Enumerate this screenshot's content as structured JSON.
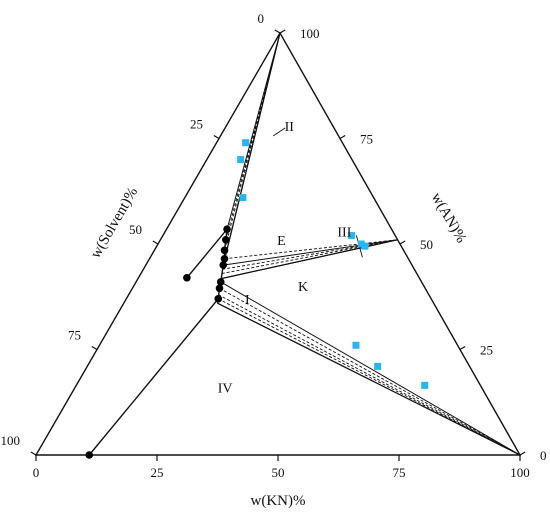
{
  "chart_data": {
    "type": "ternary-phase-diagram",
    "axes": {
      "bottom": {
        "label": "w(KN)%",
        "ticks": [
          "0",
          "25",
          "50",
          "75",
          "100"
        ]
      },
      "right": {
        "label": "w(AN)%",
        "ticks": [
          "0",
          "25",
          "50",
          "75",
          "100"
        ]
      },
      "left": {
        "label": "w(Solvent)%",
        "ticks": [
          "0",
          "25",
          "50",
          "75",
          "100"
        ]
      }
    },
    "region_labels": [
      {
        "id": "I",
        "text": "I",
        "kn": 25,
        "an": 37
      },
      {
        "id": "II",
        "text": "II",
        "kn": 13,
        "an": 78
      },
      {
        "id": "III",
        "text": "III",
        "kn": 37,
        "an": 53
      },
      {
        "id": "IV",
        "text": "IV",
        "kn": 31,
        "an": 16
      },
      {
        "id": "K",
        "text": "K",
        "kn": 35,
        "an": 40
      },
      {
        "id": "E",
        "text": "E",
        "kn": 25,
        "an": 51
      }
    ],
    "solubility_curve": [
      {
        "kn": 10,
        "an": 42
      },
      {
        "kn": 12.5,
        "an": 53.5
      },
      {
        "kn": 13.5,
        "an": 51
      },
      {
        "kn": 14.5,
        "an": 48.5
      },
      {
        "kn": 15.5,
        "an": 46.5
      },
      {
        "kn": 16,
        "an": 45
      },
      {
        "kn": 17.5,
        "an": 41
      },
      {
        "kn": 18,
        "an": 39.5
      },
      {
        "kn": 19,
        "an": 37
      },
      {
        "kn": 11,
        "an": 0
      }
    ],
    "invariant_point": {
      "kn": 16,
      "an": 45
    },
    "solid_phases": {
      "AN": {
        "kn": 0,
        "an": 100
      },
      "KN": {
        "kn": 100,
        "an": 0
      },
      "AN-KN": {
        "kn": 49,
        "an": 51
      }
    },
    "tie_lines": [
      {
        "from": {
          "kn": 12.5,
          "an": 53.5
        },
        "to": "AN",
        "style": "solid"
      },
      {
        "from": {
          "kn": 13.5,
          "an": 51
        },
        "to": "AN",
        "style": "dashed"
      },
      {
        "from": {
          "kn": 14.5,
          "an": 48.5
        },
        "to": "AN",
        "style": "dashed"
      },
      {
        "from": {
          "kn": 15.5,
          "an": 46.5
        },
        "to": "AN",
        "style": "dashed"
      },
      {
        "from": {
          "kn": 16,
          "an": 45
        },
        "to": "AN",
        "style": "solid"
      },
      {
        "from": {
          "kn": 16,
          "an": 45
        },
        "to": "AN-KN",
        "style": "solid"
      },
      {
        "from": {
          "kn": 15.5,
          "an": 46.5
        },
        "to": "AN-KN",
        "style": "dashed"
      },
      {
        "from": {
          "kn": 16.3,
          "an": 44
        },
        "to": "AN-KN",
        "style": "dashed"
      },
      {
        "from": {
          "kn": 16.7,
          "an": 43
        },
        "to": "AN-KN",
        "style": "dashed"
      },
      {
        "from": {
          "kn": 17.2,
          "an": 41.8
        },
        "to": "AN-KN",
        "style": "solid"
      },
      {
        "from": {
          "kn": 17.5,
          "an": 41
        },
        "to": "KN",
        "style": "solid"
      },
      {
        "from": {
          "kn": 18,
          "an": 39.5
        },
        "to": "KN",
        "style": "dashed"
      },
      {
        "from": {
          "kn": 18.5,
          "an": 38
        },
        "to": "KN",
        "style": "dashed"
      },
      {
        "from": {
          "kn": 19,
          "an": 37
        },
        "to": "KN",
        "style": "dashed"
      },
      {
        "from": {
          "kn": 19.3,
          "an": 36
        },
        "to": "KN",
        "style": "solid"
      }
    ],
    "region_boundaries": [
      {
        "from": {
          "kn": 16,
          "an": 45
        },
        "to": "AN"
      },
      {
        "from": {
          "kn": 17.2,
          "an": 41.8
        },
        "to": "AN-KN"
      },
      {
        "from": {
          "kn": 19.3,
          "an": 36
        },
        "to": "KN"
      }
    ],
    "wet_residue_points": [
      {
        "kn": 6,
        "an": 74
      },
      {
        "kn": 7,
        "an": 70
      },
      {
        "kn": 12,
        "an": 61
      },
      {
        "kn": 39,
        "an": 52
      },
      {
        "kn": 42,
        "an": 50
      },
      {
        "kn": 43,
        "an": 49.5
      },
      {
        "kn": 53,
        "an": 26
      },
      {
        "kn": 60,
        "an": 21
      },
      {
        "kn": 72,
        "an": 16.5
      }
    ],
    "colors": {
      "line": "#111111",
      "curve_point": "#000000",
      "residue_point": "#29b6f0"
    }
  }
}
